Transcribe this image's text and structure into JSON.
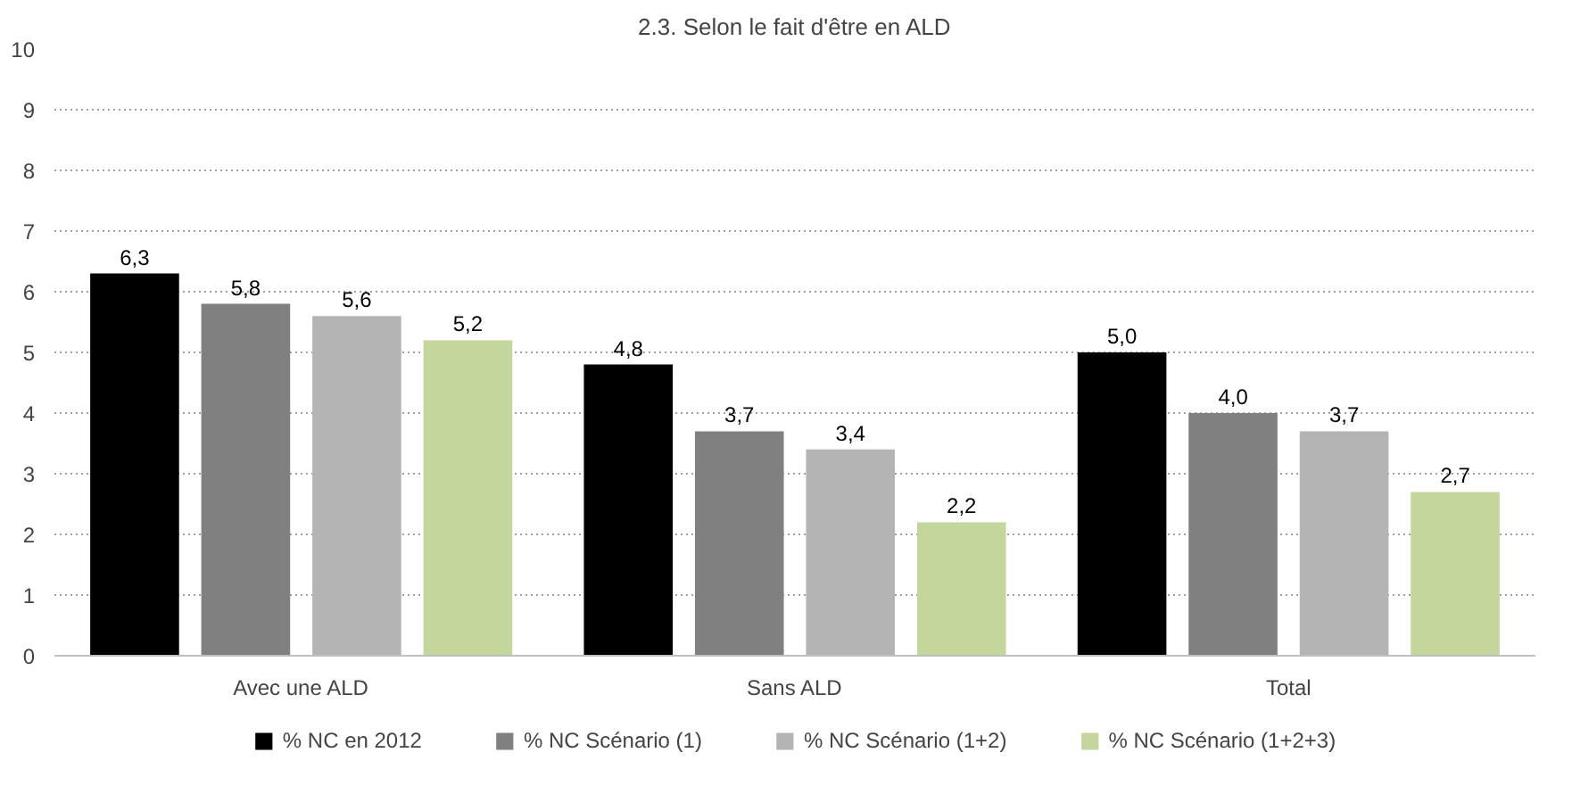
{
  "chart_data": {
    "type": "bar",
    "title": "2.3. Selon le fait d'être en ALD",
    "categories": [
      "Avec une ALD",
      "Sans ALD",
      "Total"
    ],
    "series": [
      {
        "name": "% NC en 2012",
        "color": "#000000",
        "values": [
          6.3,
          4.8,
          5.0
        ],
        "value_labels": [
          "6,3",
          "4,8",
          "5,0"
        ]
      },
      {
        "name": "% NC Scénario (1)",
        "color": "#808080",
        "values": [
          5.8,
          3.7,
          4.0
        ],
        "value_labels": [
          "5,8",
          "3,7",
          "4,0"
        ]
      },
      {
        "name": "% NC Scénario (1+2)",
        "color": "#b4b4b4",
        "values": [
          5.6,
          3.4,
          3.7
        ],
        "value_labels": [
          "5,6",
          "3,4",
          "3,7"
        ]
      },
      {
        "name": "% NC Scénario (1+2+3)",
        "color": "#c3d69b",
        "values": [
          5.2,
          2.2,
          2.7
        ],
        "value_labels": [
          "5,2",
          "2,2",
          "2,7"
        ]
      }
    ],
    "ylim": [
      0,
      10
    ],
    "yticks": [
      0,
      1,
      2,
      3,
      4,
      5,
      6,
      7,
      8,
      9,
      10
    ],
    "grid": "y",
    "legend": "bottom"
  }
}
